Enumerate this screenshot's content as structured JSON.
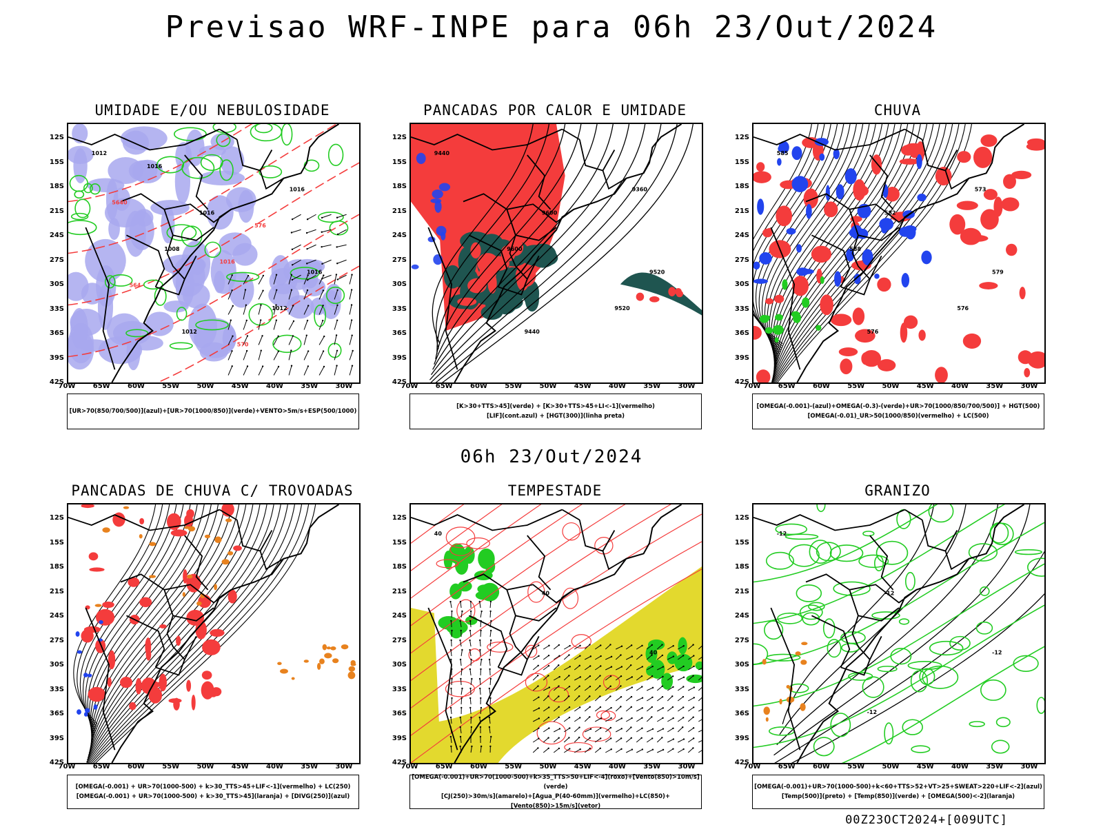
{
  "title": "Previsao WRF-INPE  para 06h 23/Out/2024",
  "mid_title": "06h 23/Out/2024",
  "footer_stamp": "00Z23OCT2024+[009UTC]",
  "lat_labels": [
    "12S",
    "15S",
    "18S",
    "21S",
    "24S",
    "27S",
    "30S",
    "33S",
    "36S",
    "39S",
    "42S"
  ],
  "lon_labels": [
    "70W",
    "65W",
    "60W",
    "55W",
    "50W",
    "45W",
    "40W",
    "35W",
    "30W"
  ],
  "colors": {
    "blue_humidity": "#a8a8ee",
    "green": "#22cc22",
    "red": "#f43c3c",
    "dark_teal": "#1f5550",
    "blue": "#2244ee",
    "orange": "#e8821e",
    "yellow": "#e3d92e"
  },
  "panels": [
    {
      "title": "UMIDADE E/OU NEBULOSIDADE",
      "legend": [
        "[UR>70(850/700/500)](azul)+[UR>70(1000/850)](verde)+VENTO>5m/s+ESP(500/1000)"
      ],
      "contour_labels": [
        "1012",
        "1016",
        "1016",
        "1012",
        "1016",
        "1008",
        "1012",
        "1016",
        "576",
        "564",
        "570",
        "5640",
        "1016"
      ]
    },
    {
      "title": "PANCADAS POR CALOR E UMIDADE",
      "legend": [
        "[K>30+TTS>45](verde) + [K>30+TTS>45+LI<-1](vermelho)",
        "[LIF](cont.azul) + [HGT(300)](linha preta)"
      ],
      "contour_labels": [
        "9440",
        "9600",
        "9520",
        "9440",
        "9360",
        "9600",
        "9520"
      ]
    },
    {
      "title": "CHUVA",
      "legend": [
        "[OMEGA(-0.001)-(azul)+OMEGA(-0.3)-(verde)+UR>70(1000/850/700/500)] + HGT(500)",
        "[OMEGA(-0.01)_UR>50(1000/850)(vermelho) + LC(500)"
      ],
      "contour_labels": [
        "585",
        "582",
        "579",
        "576",
        "573",
        "588",
        "576"
      ]
    },
    {
      "title": "PANCADAS DE CHUVA C/ TROVOADAS",
      "legend": [
        "[OMEGA(-0.001) + UR>70(1000-500) + k>30_TTS>45+LIF<-1](vermelho) + LC(250)",
        "[OMEGA(-0.001) + UR>70(1000-500) + k>30_TTS>45](laranja) + [DIVG(250)](azul)"
      ],
      "contour_labels": []
    },
    {
      "title": "TEMPESTADE",
      "legend": [
        "[OMEGA(-0.001)+UR>70(1000-500)+k>35_TTS>50+LIF<-4](roxo)+[Vento(850)>10m/s](verde)",
        "[CJ(250)>30m/s](amarelo)+[Agua_P(40-60mm)](vermelho)+LC(850)+[Vento(850)>15m/s](vetor)"
      ],
      "contour_labels": [
        "40",
        "40",
        "40"
      ]
    },
    {
      "title": "GRANIZO",
      "legend": [
        "[OMEGA(-0.001)+UR>70(1000-500)+k<60+TTS>52+VT>25+SWEAT>220+LIF<-2](azul)",
        "[Temp(500)](preto) + [Temp(850)](verde) + [OMEGA(500)<-2](laranja)"
      ],
      "contour_labels": [
        "-12",
        "-12",
        "-12",
        "-12"
      ]
    }
  ]
}
